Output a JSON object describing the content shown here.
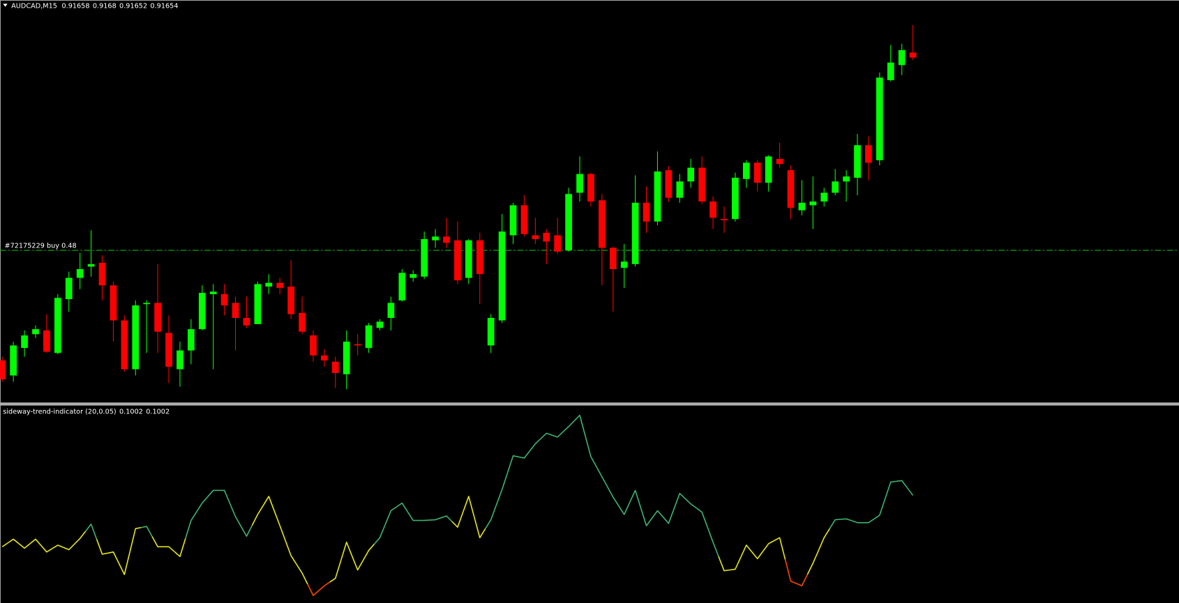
{
  "chart_data": [
    {
      "type": "candlestick",
      "symbol": "AUDCAD,M15",
      "up_color": "#00ff00",
      "down_color": "#ff0000",
      "ylim": [
        0.91379,
        0.917
      ],
      "order": {
        "label": "#72175229 buy 0.48",
        "price": 0.915,
        "color": "#00c000"
      },
      "open": [
        0.91412,
        0.914,
        0.91422,
        0.91433,
        0.91436,
        0.91418,
        0.91461,
        0.91478,
        0.91487,
        0.9149,
        0.91472,
        0.91444,
        0.91405,
        0.91457,
        0.91458,
        0.91434,
        0.91405,
        0.9142,
        0.91437,
        0.91465,
        0.91465,
        0.91458,
        0.91446,
        0.91441,
        0.91471,
        0.91474,
        0.91471,
        0.9145,
        0.91432,
        0.91416,
        0.91411,
        0.91401,
        0.91425,
        0.91422,
        0.91438,
        0.91446,
        0.9146,
        0.91478,
        0.91479,
        0.91508,
        0.91511,
        0.91508,
        0.91478,
        0.91508,
        0.91424,
        0.91444,
        0.91512,
        0.91536,
        0.91512,
        0.91514,
        0.91512,
        0.915,
        0.91546,
        0.91561,
        0.9154,
        0.91502,
        0.91486,
        0.91489,
        0.91538,
        0.91523,
        0.91564,
        0.91542,
        0.91555,
        0.91566,
        0.91539,
        0.91525,
        0.91525,
        0.91557,
        0.9157,
        0.91554,
        0.91573,
        0.91564,
        0.91532,
        0.91536,
        0.91539,
        0.91546,
        0.91555,
        0.91558,
        0.91584,
        0.91572,
        0.91636,
        0.91648,
        0.91658
      ],
      "high": [
        0.91415,
        0.91427,
        0.91436,
        0.9144,
        0.91449,
        0.91465,
        0.91483,
        0.91498,
        0.91516,
        0.91496,
        0.91475,
        0.91448,
        0.9146,
        0.9146,
        0.91489,
        0.91448,
        0.91427,
        0.91445,
        0.91472,
        0.91473,
        0.91473,
        0.91463,
        0.91463,
        0.91475,
        0.91481,
        0.91478,
        0.91492,
        0.91463,
        0.91436,
        0.91421,
        0.91415,
        0.91436,
        0.91433,
        0.91442,
        0.91445,
        0.91463,
        0.91485,
        0.91484,
        0.91515,
        0.91517,
        0.91526,
        0.91523,
        0.91509,
        0.91514,
        0.91449,
        0.91529,
        0.91538,
        0.91544,
        0.91526,
        0.91517,
        0.91526,
        0.9155,
        0.91575,
        0.91562,
        0.91545,
        0.91503,
        0.91505,
        0.9156,
        0.91551,
        0.91579,
        0.91567,
        0.91561,
        0.91573,
        0.91575,
        0.91543,
        0.91535,
        0.91562,
        0.91572,
        0.91572,
        0.91576,
        0.91586,
        0.91568,
        0.91556,
        0.91559,
        0.9155,
        0.91565,
        0.91564,
        0.91593,
        0.91591,
        0.91642,
        0.91664,
        0.91665,
        0.9168
      ],
      "low": [
        0.91395,
        0.91395,
        0.91415,
        0.9143,
        0.91418,
        0.91417,
        0.91451,
        0.91469,
        0.91479,
        0.9146,
        0.91427,
        0.91403,
        0.914,
        0.91418,
        0.91418,
        0.91394,
        0.91391,
        0.91409,
        0.91436,
        0.91405,
        0.91448,
        0.9142,
        0.91438,
        0.91441,
        0.91465,
        0.91465,
        0.91445,
        0.91433,
        0.91411,
        0.91407,
        0.9139,
        0.91389,
        0.91416,
        0.91418,
        0.91436,
        0.91436,
        0.91459,
        0.91475,
        0.91477,
        0.91502,
        0.91502,
        0.91473,
        0.91473,
        0.91457,
        0.91418,
        0.91442,
        0.91505,
        0.91511,
        0.91505,
        0.91489,
        0.91497,
        0.91499,
        0.91539,
        0.91535,
        0.91472,
        0.91451,
        0.9147,
        0.91487,
        0.91514,
        0.9152,
        0.91539,
        0.91538,
        0.9155,
        0.91537,
        0.91517,
        0.91514,
        0.91523,
        0.9155,
        0.91547,
        0.91547,
        0.91566,
        0.91525,
        0.91528,
        0.91517,
        0.91535,
        0.91544,
        0.91539,
        0.91544,
        0.91556,
        0.91568,
        0.91635,
        0.9164,
        0.91652
      ],
      "close": [
        0.91397,
        0.91424,
        0.91432,
        0.91437,
        0.91419,
        0.91462,
        0.91478,
        0.91485,
        0.91489,
        0.91472,
        0.91444,
        0.91405,
        0.91456,
        0.91458,
        0.91435,
        0.91407,
        0.9142,
        0.91437,
        0.91466,
        0.91467,
        0.91456,
        0.91446,
        0.9144,
        0.91473,
        0.91474,
        0.9147,
        0.91449,
        0.91435,
        0.91416,
        0.91412,
        0.91402,
        0.91427,
        0.91424,
        0.9144,
        0.91443,
        0.91458,
        0.91482,
        0.91481,
        0.91509,
        0.91511,
        0.91506,
        0.91476,
        0.91508,
        0.91481,
        0.91446,
        0.91515,
        0.91536,
        0.91513,
        0.91509,
        0.91507,
        0.91499,
        0.91545,
        0.91561,
        0.91539,
        0.91502,
        0.91485,
        0.91491,
        0.91538,
        0.91523,
        0.91563,
        0.91542,
        0.91555,
        0.91566,
        0.91539,
        0.91526,
        0.91524,
        0.91558,
        0.9157,
        0.91554,
        0.91575,
        0.91569,
        0.91534,
        0.91538,
        0.91539,
        0.91546,
        0.91555,
        0.91559,
        0.91584,
        0.9157,
        0.91638,
        0.9165,
        0.9166,
        0.91654
      ]
    },
    {
      "type": "line",
      "title": "sideway-trend-indicator (20,0.05)",
      "readouts": [
        0.1002,
        0.1002
      ],
      "ylim": [
        -0.0021,
        0.185
      ],
      "values": [
        0.0514,
        0.0586,
        0.05,
        0.0586,
        0.0464,
        0.0529,
        0.0486,
        0.0593,
        0.0729,
        0.0443,
        0.0464,
        0.025,
        0.0686,
        0.0707,
        0.0514,
        0.0514,
        0.0421,
        0.0764,
        0.0929,
        0.105,
        0.105,
        0.08,
        0.0614,
        0.0821,
        0.0993,
        0.0714,
        0.0429,
        0.0264,
        0.005,
        0.0143,
        0.0214,
        0.0557,
        0.0293,
        0.0479,
        0.06,
        0.0857,
        0.0929,
        0.0764,
        0.0764,
        0.0771,
        0.0807,
        0.07,
        0.0993,
        0.06,
        0.0771,
        0.1057,
        0.1379,
        0.1357,
        0.1493,
        0.1593,
        0.1557,
        0.1657,
        0.1764,
        0.1371,
        0.1179,
        0.0986,
        0.0821,
        0.105,
        0.0714,
        0.0857,
        0.0736,
        0.1021,
        0.0921,
        0.0843,
        0.0557,
        0.0286,
        0.03,
        0.0529,
        0.04,
        0.0543,
        0.06,
        0.0186,
        0.0143,
        0.0357,
        0.06,
        0.0771,
        0.0779,
        0.0743,
        0.0743,
        0.0814,
        0.1129,
        0.1143,
        0.1002
      ],
      "colors": [
        "#e6e619",
        "#e6e619",
        "#e6e619",
        "#e6e619",
        "#e6e619",
        "#e6e619",
        "#e6e619",
        "#e6e619",
        "#3cb371",
        "#e6e619",
        "#e6e619",
        "#e6e619",
        "#e6e619",
        "#3cb371",
        "#e6e619",
        "#e6e619",
        "#e6e619",
        "#3cb371",
        "#3cb371",
        "#3cb371",
        "#3cb371",
        "#3cb371",
        "#3cb371",
        "#e6e619",
        "#e6e619",
        "#e6e619",
        "#e6e619",
        "#e6e619",
        "#ff4500",
        "#ff4500",
        "#e6e619",
        "#e6e619",
        "#e6e619",
        "#e6e619",
        "#3cb371",
        "#3cb371",
        "#3cb371",
        "#3cb371",
        "#3cb371",
        "#3cb371",
        "#3cb371",
        "#e6e619",
        "#e6e619",
        "#e6e619",
        "#3cb371",
        "#3cb371",
        "#3cb371",
        "#3cb371",
        "#3cb371",
        "#3cb371",
        "#3cb371",
        "#3cb371",
        "#3cb371",
        "#3cb371",
        "#3cb371",
        "#3cb371",
        "#3cb371",
        "#3cb371",
        "#3cb371",
        "#3cb371",
        "#3cb371",
        "#3cb371",
        "#3cb371",
        "#3cb371",
        "#3cb371",
        "#e6e619",
        "#e6e619",
        "#e6e619",
        "#e6e619",
        "#e6e619",
        "#e6e619",
        "#ff4500",
        "#ff4500",
        "#e6e619",
        "#e6e619",
        "#3cb371",
        "#3cb371",
        "#3cb371",
        "#3cb371",
        "#3cb371",
        "#3cb371",
        "#3cb371",
        "#3cb371"
      ]
    }
  ]
}
